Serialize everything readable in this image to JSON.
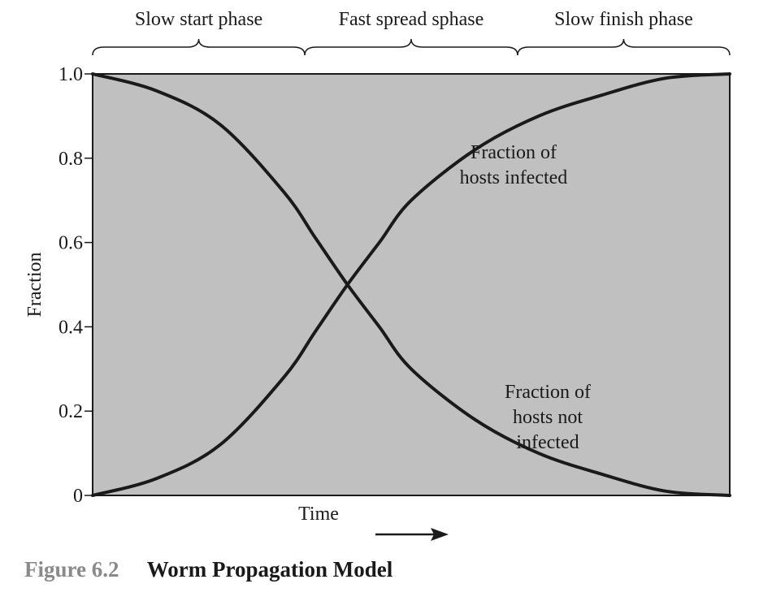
{
  "chart_data": {
    "type": "line",
    "xlabel": "Time",
    "ylabel": "Fraction",
    "ylim": [
      0,
      1
    ],
    "xlim": [
      0,
      1
    ],
    "y_ticks": [
      {
        "value": 0,
        "label": "0"
      },
      {
        "value": 0.2,
        "label": "0.2"
      },
      {
        "value": 0.4,
        "label": "0.4"
      },
      {
        "value": 0.6,
        "label": "0.6"
      },
      {
        "value": 0.8,
        "label": "0.8"
      },
      {
        "value": 1.0,
        "label": "1.0"
      }
    ],
    "grid": false,
    "plot_background": "#c0c0c0",
    "line_color": "#1a1a1a",
    "phases": [
      {
        "label": "Slow start phase",
        "x_start": 0,
        "x_end": 0.333
      },
      {
        "label": "Fast spread sphase",
        "x_start": 0.333,
        "x_end": 0.667
      },
      {
        "label": "Slow finish phase",
        "x_start": 0.667,
        "x_end": 1.0
      }
    ],
    "series": [
      {
        "label_lines": [
          "Fraction of",
          "hosts infected"
        ],
        "x": [
          0,
          0.1,
          0.2,
          0.3,
          0.35,
          0.4,
          0.45,
          0.5,
          0.6,
          0.7,
          0.8,
          0.9,
          1.0
        ],
        "y": [
          0,
          0.04,
          0.12,
          0.28,
          0.39,
          0.5,
          0.6,
          0.7,
          0.82,
          0.9,
          0.95,
          0.99,
          1.0
        ]
      },
      {
        "label_lines": [
          "Fraction of",
          "hosts not",
          "infected"
        ],
        "x": [
          0,
          0.1,
          0.2,
          0.3,
          0.35,
          0.4,
          0.45,
          0.5,
          0.6,
          0.7,
          0.8,
          0.9,
          1.0
        ],
        "y": [
          1.0,
          0.96,
          0.88,
          0.72,
          0.61,
          0.5,
          0.4,
          0.3,
          0.18,
          0.1,
          0.05,
          0.01,
          0
        ]
      }
    ]
  },
  "caption": {
    "number": "Figure 6.2",
    "title": "Worm Propagation Model"
  }
}
